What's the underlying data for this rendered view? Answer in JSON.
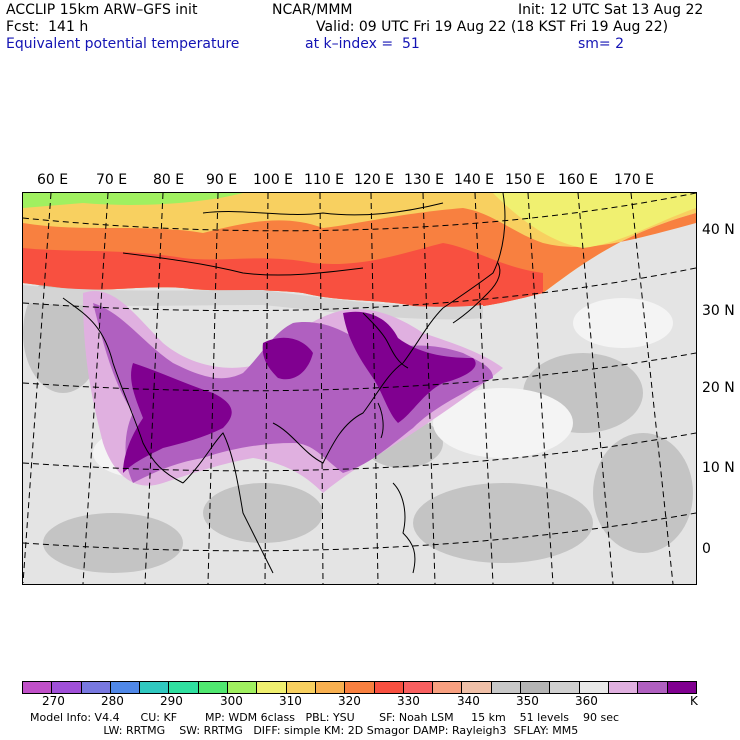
{
  "header": {
    "title": "ACCLIP 15km ARW–GFS init",
    "center": "NCAR/MMM",
    "init": "Init: 12 UTC Sat 13 Aug 22",
    "fcst": "Fcst:  141 h",
    "valid": "Valid: 09 UTC Fri 19 Aug 22 (18 KST Fri 19 Aug 22)",
    "field": "Equivalent potential temperature",
    "level": "at k–index =  51",
    "smooth": "sm= 2"
  },
  "map": {
    "lon_labels": [
      "60 E",
      "70 E",
      "80 E",
      "90 E",
      "100 E",
      "110 E",
      "120 E",
      "130 E",
      "140 E",
      "150 E",
      "160 E",
      "170 E"
    ],
    "lat_labels": [
      "40 N",
      "30 N",
      "20 N",
      "10 N",
      "0"
    ]
  },
  "colorbar": {
    "colors": [
      "#c050c8",
      "#a050d8",
      "#7878e0",
      "#5088e8",
      "#30c8c0",
      "#30e0a0",
      "#50e870",
      "#a0f060",
      "#f0f070",
      "#f8d060",
      "#f8b050",
      "#f88040",
      "#f85040",
      "#f86060",
      "#f8a080",
      "#f0c0a8",
      "#c8c8c8",
      "#b4b4b4",
      "#d0d0d0",
      "#e8e8e8",
      "#e0b0e0",
      "#b060c0",
      "#800090"
    ],
    "tick_labels": [
      "270",
      "280",
      "290",
      "300",
      "310",
      "320",
      "330",
      "340",
      "350",
      "360"
    ],
    "unit": "K"
  },
  "footer": {
    "line1": "Model Info: V4.4      CU: KF        MP: WDM 6class   PBL: YSU       SF: Noah LSM     15 km    51 levels    90 sec",
    "line2": "                     LW: RRTMG    SW: RRTMG   DIFF: simple KM: 2D Smagor DAMP: Rayleigh3  SFLAY: MM5"
  }
}
